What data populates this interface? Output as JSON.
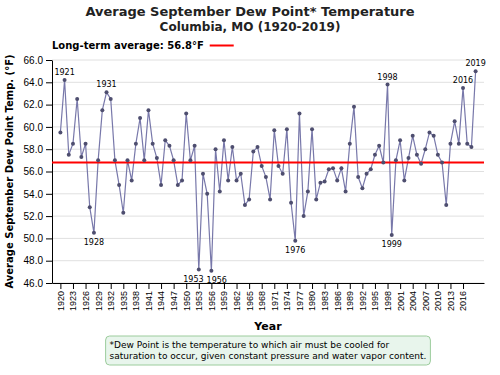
{
  "chart_data": {
    "type": "line",
    "title": "Average September Dew Point* Temperature",
    "subtitle": "Columbia, MO (1920-2019)",
    "x_label": "Year",
    "y_label": "Average September Dew Point Temp. (°F)",
    "x": [
      1920,
      1921,
      1922,
      1923,
      1924,
      1925,
      1926,
      1927,
      1928,
      1929,
      1930,
      1931,
      1932,
      1933,
      1934,
      1935,
      1936,
      1937,
      1938,
      1939,
      1940,
      1941,
      1942,
      1943,
      1944,
      1945,
      1946,
      1947,
      1948,
      1949,
      1950,
      1951,
      1952,
      1953,
      1954,
      1955,
      1956,
      1957,
      1958,
      1959,
      1960,
      1961,
      1962,
      1963,
      1964,
      1965,
      1966,
      1967,
      1968,
      1969,
      1970,
      1971,
      1972,
      1973,
      1974,
      1975,
      1976,
      1977,
      1978,
      1979,
      1980,
      1981,
      1982,
      1983,
      1984,
      1985,
      1986,
      1987,
      1988,
      1989,
      1990,
      1991,
      1992,
      1993,
      1994,
      1995,
      1996,
      1997,
      1998,
      1999,
      2000,
      2001,
      2002,
      2003,
      2004,
      2005,
      2006,
      2007,
      2008,
      2009,
      2010,
      2011,
      2012,
      2013,
      2014,
      2015,
      2016,
      2017,
      2018,
      2019
    ],
    "values": [
      59.5,
      64.2,
      57.5,
      58.5,
      62.5,
      57.3,
      58.5,
      52.8,
      50.5,
      57.0,
      61.5,
      63.1,
      62.5,
      57.0,
      54.8,
      52.3,
      57.0,
      55.2,
      58.5,
      60.8,
      57.0,
      61.5,
      58.5,
      57.2,
      54.8,
      58.8,
      58.3,
      57.0,
      54.8,
      55.2,
      61.2,
      57.0,
      58.3,
      47.2,
      55.8,
      54.0,
      47.1,
      58.0,
      54.2,
      58.8,
      55.2,
      58.2,
      55.2,
      55.8,
      53.0,
      53.5,
      57.8,
      58.2,
      56.5,
      55.5,
      53.5,
      59.7,
      56.5,
      55.8,
      59.8,
      53.2,
      49.8,
      61.2,
      52.0,
      54.2,
      59.8,
      53.5,
      55.0,
      55.1,
      56.2,
      56.3,
      55.2,
      56.3,
      54.2,
      58.5,
      61.8,
      55.5,
      54.5,
      55.8,
      56.2,
      57.5,
      58.3,
      56.8,
      63.8,
      50.3,
      57.0,
      58.8,
      55.2,
      57.2,
      59.2,
      57.5,
      56.7,
      58.0,
      59.5,
      59.2,
      57.5,
      56.8,
      53.0,
      58.5,
      60.5,
      58.5,
      63.5,
      58.5,
      58.2,
      65.0
    ],
    "color": "#7878aa",
    "marker": "circle",
    "xlim": [
      1918,
      2021
    ],
    "xticks": [
      1920,
      1923,
      1926,
      1929,
      1932,
      1935,
      1938,
      1941,
      1944,
      1947,
      1950,
      1953,
      1956,
      1959,
      1962,
      1965,
      1968,
      1971,
      1974,
      1977,
      1980,
      1983,
      1986,
      1989,
      1992,
      1995,
      1998,
      2001,
      2004,
      2007,
      2010,
      2013,
      2016
    ],
    "ylim": [
      46.0,
      66.0
    ],
    "yticks": [
      {
        "value": 46.0,
        "label": "46.0"
      },
      {
        "value": 48.0,
        "label": "48.0"
      },
      {
        "value": 50.0,
        "label": "50.0"
      },
      {
        "value": 52.0,
        "label": "52.0"
      },
      {
        "value": 54.0,
        "label": "54.0"
      },
      {
        "value": 56.0,
        "label": "56.0"
      },
      {
        "value": 58.0,
        "label": "58.0"
      },
      {
        "value": 60.0,
        "label": "60.0"
      },
      {
        "value": 62.0,
        "label": "62.0"
      },
      {
        "value": 64.0,
        "label": "64.0"
      },
      {
        "value": 66.0,
        "label": "66.0"
      }
    ],
    "grid": true,
    "reference_line": {
      "value": 56.8,
      "label": "Long-term average: 56.8°F",
      "color": "red"
    },
    "annotations": [
      {
        "text": "1921",
        "x": 1921,
        "y": 64.2
      },
      {
        "text": "1928",
        "x": 1928,
        "y": 50.5
      },
      {
        "text": "1931",
        "x": 1931,
        "y": 63.1
      },
      {
        "text": "1953",
        "x": 1953,
        "y": 47.2
      },
      {
        "text": "1956",
        "x": 1956,
        "y": 47.1
      },
      {
        "text": "1976",
        "x": 1976,
        "y": 49.8
      },
      {
        "text": "1998",
        "x": 1998,
        "y": 63.8
      },
      {
        "text": "1999",
        "x": 1999,
        "y": 50.3
      },
      {
        "text": "2016",
        "x": 2016,
        "y": 63.5
      },
      {
        "text": "2019",
        "x": 2019,
        "y": 65.0
      }
    ],
    "note": "*Dew Point is the temperature to which air must be cooled for\nsaturation to occur, given constant pressure and water vapor content."
  }
}
